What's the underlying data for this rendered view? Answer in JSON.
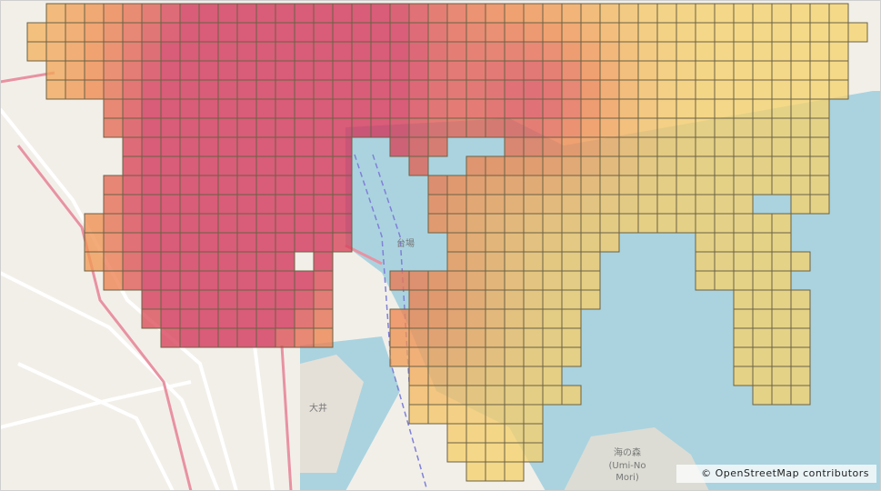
{
  "map": {
    "attribution": "© OpenStreetMap contributors",
    "labels": [
      "台場",
      "大井",
      "海の森",
      "(Umi-No",
      "Mori)"
    ]
  }
}
